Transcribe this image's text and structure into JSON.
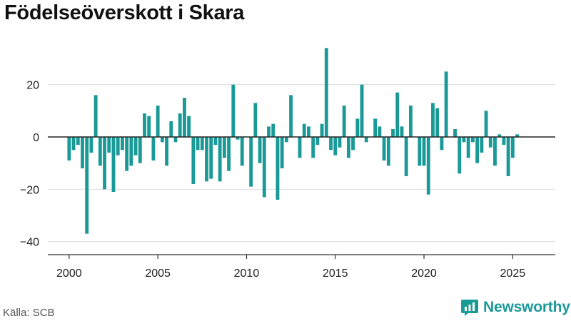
{
  "title": "Födelseöverskott i Skara",
  "source": "Källa: SCB",
  "brand": {
    "name": "Newsworthy",
    "icon": "newsworthy-logo-icon"
  },
  "colors": {
    "bar": "#1a9a97",
    "grid": "#dddddd",
    "zero_line": "#222222",
    "axis": "#333333"
  },
  "chart_data": {
    "type": "bar",
    "title": "Födelseöverskott i Skara",
    "xlabel": "",
    "ylabel": "",
    "ylim": [
      -45,
      36
    ],
    "xlim": [
      1998.8,
      2027.4
    ],
    "grid": true,
    "y_ticks": [
      20,
      0,
      -20,
      -40
    ],
    "y_tick_labels": [
      "20",
      "0",
      "−20",
      "−40"
    ],
    "x_ticks": [
      2000,
      2005,
      2010,
      2015,
      2020,
      2025
    ],
    "x_tick_labels": [
      "2000",
      "2005",
      "2010",
      "2015",
      "2020",
      "2025"
    ],
    "x": [
      2000.0,
      2000.25,
      2000.5,
      2000.75,
      2001.0,
      2001.25,
      2001.5,
      2001.75,
      2002.0,
      2002.25,
      2002.5,
      2002.75,
      2003.0,
      2003.25,
      2003.5,
      2003.75,
      2004.0,
      2004.25,
      2004.5,
      2004.75,
      2005.0,
      2005.25,
      2005.5,
      2005.75,
      2006.0,
      2006.25,
      2006.5,
      2006.75,
      2007.0,
      2007.25,
      2007.5,
      2007.75,
      2008.0,
      2008.25,
      2008.5,
      2008.75,
      2009.0,
      2009.25,
      2009.5,
      2009.75,
      2010.0,
      2010.25,
      2010.5,
      2010.75,
      2011.0,
      2011.25,
      2011.5,
      2011.75,
      2012.0,
      2012.25,
      2012.5,
      2012.75,
      2013.0,
      2013.25,
      2013.5,
      2013.75,
      2014.0,
      2014.25,
      2014.5,
      2014.75,
      2015.0,
      2015.25,
      2015.5,
      2015.75,
      2016.0,
      2016.25,
      2016.5,
      2016.75,
      2017.0,
      2017.25,
      2017.5,
      2017.75,
      2018.0,
      2018.25,
      2018.5,
      2018.75,
      2019.0,
      2019.25,
      2019.5,
      2019.75,
      2020.0,
      2020.25,
      2020.5,
      2020.75,
      2021.0,
      2021.25,
      2021.5,
      2021.75,
      2022.0,
      2022.25,
      2022.5,
      2022.75,
      2023.0,
      2023.25,
      2023.5,
      2023.75,
      2024.0,
      2024.25,
      2024.5,
      2024.75,
      2025.0,
      2025.25
    ],
    "values": [
      -9,
      -5,
      -3,
      -12,
      -37,
      -6,
      16,
      -11,
      -20,
      -6,
      -21,
      -7,
      -5,
      -13,
      -11,
      -7,
      -10,
      9,
      8,
      -9,
      12,
      -2,
      -11,
      6,
      -2,
      9,
      15,
      8,
      -18,
      -5,
      -5,
      -17,
      -16,
      -3,
      -17,
      -8,
      -13,
      20,
      -1,
      -11,
      0,
      -19,
      13,
      -10,
      -23,
      4,
      5,
      -24,
      -12,
      -2,
      16,
      0,
      -8,
      5,
      4,
      -8,
      -3,
      5,
      34,
      -5,
      -7,
      -4,
      12,
      -8,
      -5,
      7,
      20,
      -2,
      0,
      7,
      4,
      -9,
      -11,
      3,
      17,
      4,
      -15,
      12,
      0,
      -11,
      -11,
      -22,
      13,
      11,
      -5,
      25,
      0,
      3,
      -14,
      -2,
      -8,
      -2,
      -10,
      -6,
      10,
      -4,
      -11,
      1,
      -3,
      -15,
      -8,
      1
    ]
  }
}
